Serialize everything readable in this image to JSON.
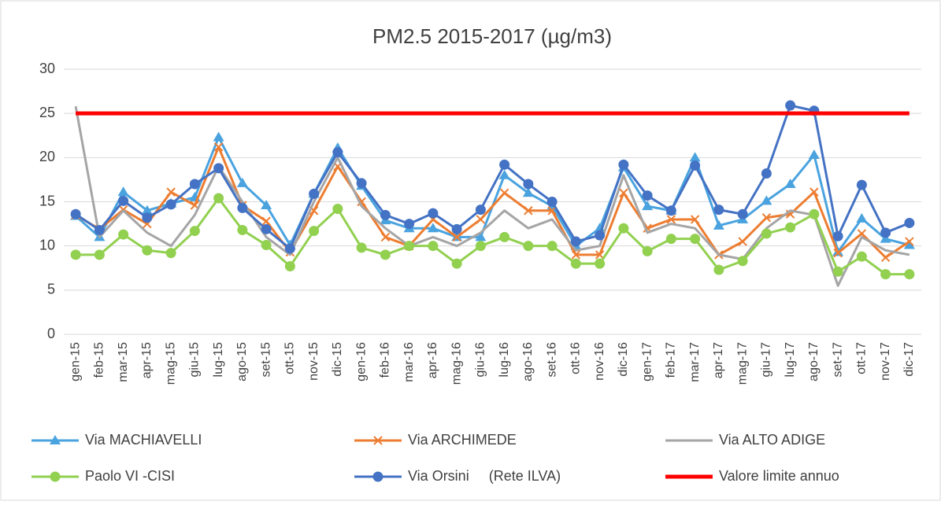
{
  "chart_data": {
    "type": "line",
    "title": "PM2.5 2015-2017 (µg/m3)",
    "categories": [
      "gen-15",
      "feb-15",
      "mar-15",
      "apr-15",
      "mag-15",
      "giu-15",
      "lug-15",
      "ago-15",
      "set-15",
      "ott-15",
      "nov-15",
      "dic-15",
      "gen-16",
      "feb-16",
      "mar-16",
      "apr-16",
      "mag-16",
      "giu-16",
      "lug-16",
      "ago-16",
      "set-16",
      "ott-16",
      "nov-16",
      "dic-16",
      "gen-17",
      "feb-17",
      "mar-17",
      "apr-17",
      "mag-17",
      "giu-17",
      "lug-17",
      "ago-17",
      "set-17",
      "ott-17",
      "nov-17",
      "dic-17"
    ],
    "series": [
      {
        "name": "Via MACHIAVELLI",
        "color": "#4aa3df",
        "marker": "triangle",
        "values": [
          13.4,
          11.0,
          16.1,
          14.0,
          14.8,
          15.5,
          22.3,
          17.1,
          14.6,
          10.1,
          15.9,
          21.1,
          16.8,
          12.9,
          12.0,
          12.0,
          11.0,
          11.0,
          18.0,
          16.0,
          14.5,
          10.0,
          12.0,
          18.9,
          14.5,
          14.0,
          20.0,
          12.3,
          13.0,
          15.1,
          17.0,
          20.3,
          9.3,
          13.1,
          10.8,
          10.1
        ]
      },
      {
        "name": "Via ARCHIMEDE",
        "color": "#ed7d31",
        "marker": "x",
        "values": [
          13.5,
          11.9,
          14.1,
          12.5,
          16.1,
          14.6,
          21.2,
          14.6,
          12.8,
          9.3,
          14.0,
          19.0,
          15.0,
          11.0,
          10.0,
          13.0,
          11.0,
          13.0,
          16.0,
          14.0,
          14.0,
          9.0,
          9.0,
          16.0,
          12.0,
          13.0,
          13.0,
          9.0,
          10.5,
          13.2,
          13.6,
          16.1,
          9.2,
          11.4,
          8.7,
          10.5
        ]
      },
      {
        "name": "Via ALTO ADIGE",
        "color": "#a5a5a5",
        "marker": "none",
        "values": [
          25.8,
          11.0,
          14.0,
          11.5,
          10.0,
          13.5,
          19.0,
          15.0,
          11.0,
          9.0,
          15.0,
          20.0,
          14.5,
          12.0,
          10.0,
          11.0,
          10.0,
          11.5,
          14.0,
          12.0,
          13.0,
          9.5,
          10.0,
          18.0,
          11.5,
          12.5,
          12.0,
          9.0,
          8.5,
          12.0,
          14.0,
          13.5,
          5.5,
          11.0,
          9.5,
          9.0
        ]
      },
      {
        "name": "Paolo VI -CISI",
        "color": "#92d050",
        "marker": "circle",
        "values": [
          9.0,
          9.0,
          11.3,
          9.5,
          9.2,
          11.7,
          15.4,
          11.8,
          10.1,
          7.7,
          11.7,
          14.2,
          9.8,
          9.0,
          10.0,
          10.0,
          8.0,
          10.0,
          11.0,
          10.0,
          10.0,
          8.0,
          8.0,
          12.0,
          9.4,
          10.8,
          10.8,
          7.3,
          8.3,
          11.4,
          12.1,
          13.6,
          7.1,
          8.8,
          6.8,
          6.8
        ]
      },
      {
        "name": "Via Orsini     (Rete ILVA)",
        "color": "#4472c4",
        "marker": "circle",
        "values": [
          13.6,
          11.8,
          15.1,
          13.2,
          14.7,
          17.0,
          18.8,
          14.3,
          11.9,
          9.7,
          15.9,
          20.6,
          17.1,
          13.5,
          12.5,
          13.7,
          11.9,
          14.1,
          19.2,
          17.0,
          15.0,
          10.5,
          11.2,
          19.2,
          15.7,
          14.0,
          19.1,
          14.1,
          13.6,
          18.2,
          25.9,
          25.3,
          11.1,
          16.9,
          11.5,
          12.6
        ]
      },
      {
        "name": "Valore limite annuo",
        "color": "#ff0000",
        "marker": "none",
        "width": 5,
        "values": [
          25,
          25,
          25,
          25,
          25,
          25,
          25,
          25,
          25,
          25,
          25,
          25,
          25,
          25,
          25,
          25,
          25,
          25,
          25,
          25,
          25,
          25,
          25,
          25,
          25,
          25,
          25,
          25,
          25,
          25,
          25,
          25,
          25,
          25,
          25,
          25
        ]
      }
    ],
    "ylim": [
      0,
      30
    ],
    "yticks": [
      0,
      5,
      10,
      15,
      20,
      25,
      30
    ],
    "grid": true,
    "legend": "bottom"
  }
}
